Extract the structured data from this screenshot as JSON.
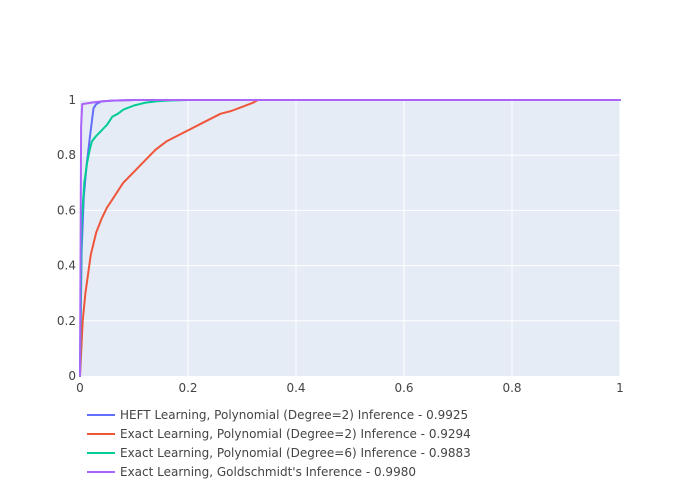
{
  "chart_data": {
    "type": "line",
    "title": "",
    "xlabel": "",
    "ylabel": "",
    "xlim": [
      0,
      1
    ],
    "ylim": [
      0,
      1
    ],
    "grid": true,
    "legend_position": "bottom-left",
    "x_ticks": [
      {
        "value": 0,
        "label": "0"
      },
      {
        "value": 0.2,
        "label": "0.2"
      },
      {
        "value": 0.4,
        "label": "0.4"
      },
      {
        "value": 0.6,
        "label": "0.6"
      },
      {
        "value": 0.8,
        "label": "0.8"
      },
      {
        "value": 1,
        "label": "1"
      }
    ],
    "y_ticks": [
      {
        "value": 0,
        "label": "0"
      },
      {
        "value": 0.2,
        "label": "0.2"
      },
      {
        "value": 0.4,
        "label": "0.4"
      },
      {
        "value": 0.6,
        "label": "0.6"
      },
      {
        "value": 0.8,
        "label": "0.8"
      },
      {
        "value": 1,
        "label": "1"
      }
    ],
    "series": [
      {
        "name": "HEFT Learning, Polynomial (Degree=2) Inference - 0.9925",
        "color": "#636efa",
        "x": [
          0,
          0.003,
          0.007,
          0.012,
          0.018,
          0.025,
          0.03,
          0.04,
          0.06,
          0.1,
          0.2,
          0.5,
          1
        ],
        "y": [
          0,
          0.45,
          0.65,
          0.76,
          0.86,
          0.97,
          0.985,
          0.995,
          0.998,
          1,
          1,
          1,
          1
        ]
      },
      {
        "name": "Exact Learning, Polynomial (Degree=2) Inference - 0.9294",
        "color": "#ef553b",
        "x": [
          0,
          0.005,
          0.01,
          0.02,
          0.03,
          0.04,
          0.05,
          0.06,
          0.07,
          0.08,
          0.1,
          0.12,
          0.14,
          0.16,
          0.18,
          0.2,
          0.22,
          0.24,
          0.26,
          0.28,
          0.3,
          0.32,
          0.33,
          0.5,
          0.7,
          1
        ],
        "y": [
          0,
          0.2,
          0.3,
          0.44,
          0.52,
          0.57,
          0.61,
          0.64,
          0.67,
          0.7,
          0.74,
          0.78,
          0.82,
          0.85,
          0.87,
          0.89,
          0.91,
          0.93,
          0.95,
          0.96,
          0.975,
          0.99,
          1,
          1,
          1,
          1
        ]
      },
      {
        "name": "Exact Learning, Polynomial (Degree=6) Inference - 0.9883",
        "color": "#00cc96",
        "x": [
          0,
          0.003,
          0.008,
          0.013,
          0.018,
          0.022,
          0.03,
          0.04,
          0.05,
          0.06,
          0.07,
          0.08,
          0.1,
          0.12,
          0.14,
          0.16,
          0.2,
          0.3,
          0.5,
          1
        ],
        "y": [
          0,
          0.55,
          0.7,
          0.77,
          0.82,
          0.85,
          0.87,
          0.89,
          0.91,
          0.94,
          0.95,
          0.965,
          0.98,
          0.99,
          0.995,
          0.998,
          1,
          1,
          1,
          1
        ]
      },
      {
        "name": "Exact Learning, Goldschmidt's Inference - 0.9980",
        "color": "#ab63fa",
        "x": [
          0,
          0.002,
          0.004,
          0.02,
          0.04,
          0.06,
          0.1,
          0.3,
          0.6,
          1
        ],
        "y": [
          0,
          0.9,
          0.985,
          0.99,
          0.995,
          0.998,
          1,
          1,
          1,
          1
        ]
      }
    ]
  }
}
